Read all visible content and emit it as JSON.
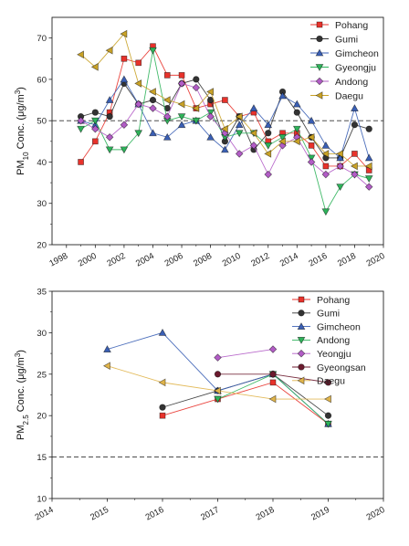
{
  "chart_data": [
    {
      "type": "line",
      "ylabel_main": "PM",
      "ylabel_sub": "10",
      "ylabel_tail": " Conc. (μg/m",
      "ylabel_sup": "3",
      "ylabel_end": ")",
      "xlim": [
        1997,
        2020
      ],
      "ylim": [
        20,
        75
      ],
      "xticks": [
        "1998",
        "2000",
        "2002",
        "2004",
        "2006",
        "2008",
        "2010",
        "2012",
        "2014",
        "2016",
        "2018",
        "2020"
      ],
      "yticks": [
        "20",
        "30",
        "40",
        "50",
        "60",
        "70"
      ],
      "reference_line": 50,
      "legend_position": "top-right",
      "series": [
        {
          "name": "Pohang",
          "color": "#e8322b",
          "marker": "square",
          "x": [
            1999,
            2000,
            2001,
            2002,
            2003,
            2004,
            2005,
            2006,
            2007,
            2008,
            2009,
            2010,
            2011,
            2012,
            2013,
            2014,
            2015,
            2016,
            2017,
            2018,
            2019
          ],
          "y": [
            40,
            45,
            52,
            65,
            64,
            68,
            61,
            61,
            53,
            54,
            55,
            51,
            52,
            45,
            47,
            47,
            44,
            39,
            39,
            42,
            38
          ]
        },
        {
          "name": "Gumi",
          "color": "#333333",
          "marker": "circle",
          "x": [
            1999,
            2000,
            2001,
            2002,
            2003,
            2004,
            2005,
            2006,
            2007,
            2008,
            2009,
            2010,
            2011,
            2012,
            2013,
            2014,
            2015,
            2016,
            2017,
            2018,
            2019
          ],
          "y": [
            51,
            52,
            51,
            59,
            54,
            55,
            53,
            59,
            60,
            55,
            45,
            51,
            43,
            47,
            57,
            52,
            46,
            41,
            41,
            49,
            48
          ]
        },
        {
          "name": "Gimcheon",
          "color": "#3a5fb5",
          "marker": "triangle-up",
          "x": [
            1999,
            2000,
            2001,
            2002,
            2003,
            2004,
            2005,
            2006,
            2007,
            2008,
            2009,
            2010,
            2011,
            2012,
            2013,
            2014,
            2015,
            2016,
            2017,
            2018,
            2019
          ],
          "y": [
            50,
            49,
            55,
            60,
            54,
            47,
            46,
            49,
            50,
            46,
            43,
            49,
            53,
            49,
            56,
            54,
            50,
            44,
            41,
            53,
            41
          ]
        },
        {
          "name": "Gyeongju",
          "color": "#2eb35a",
          "marker": "triangle-down",
          "x": [
            1999,
            2000,
            2001,
            2002,
            2003,
            2004,
            2005,
            2006,
            2007,
            2008,
            2009,
            2010,
            2011,
            2012,
            2013,
            2014,
            2015,
            2016,
            2017,
            2018,
            2019
          ],
          "y": [
            48,
            50,
            43,
            43,
            47,
            67,
            50,
            51,
            50,
            52,
            46,
            47,
            47,
            44,
            46,
            48,
            41,
            28,
            34,
            37,
            36
          ]
        },
        {
          "name": "Andong",
          "color": "#b25cc6",
          "marker": "diamond",
          "x": [
            1999,
            2000,
            2001,
            2002,
            2003,
            2004,
            2005,
            2006,
            2007,
            2008,
            2009,
            2010,
            2011,
            2012,
            2013,
            2014,
            2015,
            2016,
            2017,
            2018,
            2019
          ],
          "y": [
            50,
            48,
            46,
            49,
            54,
            53,
            51,
            59,
            58,
            51,
            47,
            42,
            44,
            37,
            44,
            46,
            40,
            37,
            39,
            37,
            34
          ]
        },
        {
          "name": "Daegu",
          "color": "#c9a227",
          "marker": "triangle-left",
          "x": [
            1999,
            2000,
            2001,
            2002,
            2003,
            2004,
            2005,
            2006,
            2007,
            2008,
            2009,
            2010,
            2011,
            2012,
            2013,
            2014,
            2015,
            2016,
            2017,
            2018,
            2019
          ],
          "y": [
            66,
            63,
            67,
            71,
            59,
            57,
            55,
            54,
            53,
            57,
            48,
            51,
            47,
            42,
            45,
            45,
            46,
            42,
            42,
            39,
            39
          ]
        }
      ]
    },
    {
      "type": "line",
      "ylabel_main": "PM",
      "ylabel_sub": "2.5",
      "ylabel_tail": " Conc. (μg/m",
      "ylabel_sup": "3",
      "ylabel_end": ")",
      "xlim": [
        2014,
        2020
      ],
      "ylim": [
        10,
        35
      ],
      "xticks": [
        "2014",
        "2015",
        "2016",
        "2017",
        "2018",
        "2019",
        "2020"
      ],
      "yticks": [
        "10",
        "15",
        "20",
        "25",
        "30",
        "35"
      ],
      "reference_line": 15,
      "legend_position": "top-right",
      "series": [
        {
          "name": "Pohang",
          "color": "#e8322b",
          "marker": "square",
          "x": [
            2016,
            2017,
            2018,
            2019
          ],
          "y": [
            20,
            22,
            24,
            19
          ]
        },
        {
          "name": "Gumi",
          "color": "#333333",
          "marker": "circle",
          "x": [
            2016,
            2017,
            2018,
            2019
          ],
          "y": [
            21,
            23,
            25,
            20
          ]
        },
        {
          "name": "Gimcheon",
          "color": "#3a5fb5",
          "marker": "triangle-up",
          "x": [
            2015,
            2016,
            2017,
            2018,
            2019
          ],
          "y": [
            28,
            30,
            23,
            25,
            19
          ]
        },
        {
          "name": "Andong",
          "color": "#2eb35a",
          "marker": "triangle-down",
          "x": [
            2017,
            2018,
            2019
          ],
          "y": [
            22,
            25,
            19
          ]
        },
        {
          "name": "Yeongju",
          "color": "#b25cc6",
          "marker": "diamond",
          "x": [
            2017,
            2018
          ],
          "y": [
            27,
            28
          ]
        },
        {
          "name": "Gyeongsan",
          "color": "#6b1a2e",
          "marker": "circle",
          "x": [
            2017,
            2018,
            2019
          ],
          "y": [
            25,
            25,
            24
          ]
        },
        {
          "name": "Daegu",
          "color": "#e0b44a",
          "marker": "triangle-left",
          "x": [
            2015,
            2016,
            2017,
            2018,
            2019
          ],
          "y": [
            26,
            24,
            23,
            22,
            22
          ]
        }
      ]
    }
  ]
}
